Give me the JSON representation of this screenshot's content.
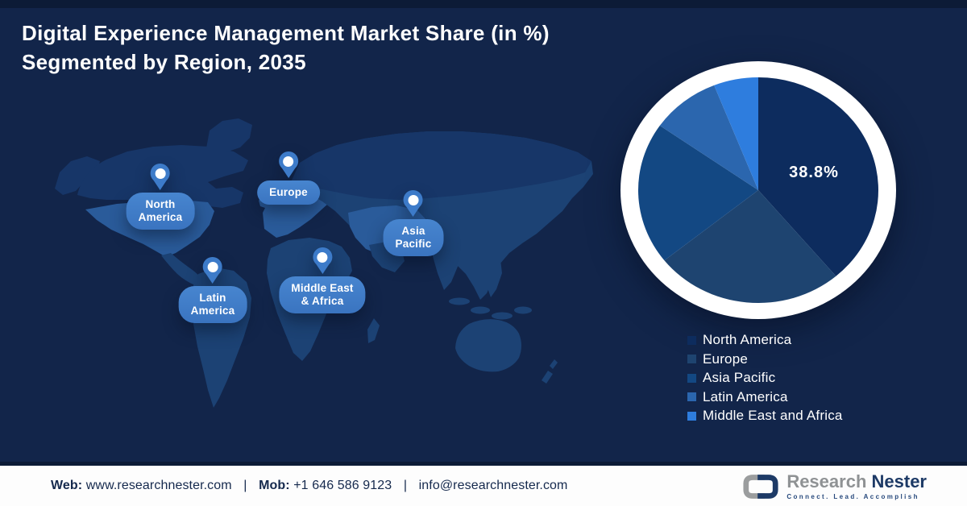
{
  "title": {
    "line1": "Digital Experience Management Market Share (in %)",
    "line2": "Segmented by Region, 2035"
  },
  "chart_data": {
    "type": "pie",
    "title": "Digital Experience Management Market Share (in %) Segmented by Region, 2035",
    "labels": [
      "North America",
      "Europe",
      "Asia Pacific",
      "Latin America",
      "Middle East and Africa"
    ],
    "values": [
      38.8,
      25.5,
      20.4,
      9.3,
      6.0
    ],
    "colors": [
      "#0d2c5e",
      "#1e4470",
      "#134883",
      "#2b66ae",
      "#2e7dde"
    ],
    "center_label": "38.8%",
    "highlighted_slice": "North America",
    "start_angle_deg": 0,
    "direction": "clockwise",
    "ring_color": "#ffffff",
    "legend_position": "bottom-right"
  },
  "map": {
    "pins": [
      {
        "region": "north-america",
        "line1": "North",
        "line2": "America"
      },
      {
        "region": "europe",
        "line1": "Europe",
        "line2": ""
      },
      {
        "region": "asia-pacific",
        "line1": "Asia",
        "line2": "Pacific"
      },
      {
        "region": "middle-east-africa",
        "line1": "Middle East",
        "line2": "& Africa"
      },
      {
        "region": "latin-america",
        "line1": "Latin",
        "line2": "America"
      }
    ]
  },
  "footer": {
    "web_label": "Web:",
    "web_value": "www.researchnester.com",
    "mob_label": "Mob:",
    "mob_value": "+1 646 586 9123",
    "email_value": "info@researchnester.com",
    "separator": "|"
  },
  "brand": {
    "name_primary": "Research",
    "name_secondary": "Nester",
    "tagline": "Connect. Lead. Accomplish"
  }
}
